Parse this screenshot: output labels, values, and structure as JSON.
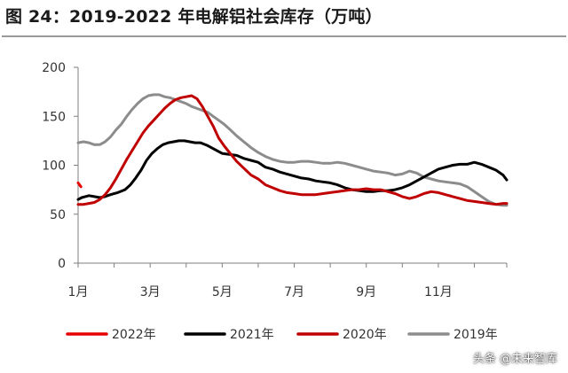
{
  "title": "图 24：2019-2022 年电解铝社会库存（万吨）",
  "watermark": "头条 @未来智库",
  "chart_data": {
    "type": "line",
    "title": "图 24：2019-2022 年电解铝社会库存（万吨）",
    "xlabel": "",
    "ylabel": "",
    "ylim": [
      0,
      200
    ],
    "yticks": [
      0,
      50,
      100,
      150,
      200
    ],
    "xlim": [
      1,
      12.9
    ],
    "xticks": [
      1,
      3,
      5,
      7,
      9,
      11
    ],
    "xtick_labels": [
      "1月",
      "3月",
      "5月",
      "7月",
      "9月",
      "11月"
    ],
    "grid": false,
    "legend_position": "bottom",
    "series": [
      {
        "name": "2022年",
        "color": "#e60000",
        "x": [
          1.0,
          1.08
        ],
        "y": [
          82,
          78
        ]
      },
      {
        "name": "2021年",
        "color": "#000000",
        "x": [
          1.0,
          1.1,
          1.2,
          1.3,
          1.45,
          1.6,
          1.75,
          1.9,
          2.1,
          2.3,
          2.45,
          2.6,
          2.75,
          2.9,
          3.05,
          3.2,
          3.35,
          3.5,
          3.65,
          3.8,
          3.95,
          4.1,
          4.25,
          4.4,
          4.6,
          4.8,
          5.0,
          5.2,
          5.4,
          5.6,
          5.8,
          6.0,
          6.2,
          6.4,
          6.6,
          6.8,
          7.0,
          7.2,
          7.4,
          7.6,
          7.8,
          8.0,
          8.2,
          8.4,
          8.6,
          8.8,
          9.0,
          9.2,
          9.4,
          9.6,
          9.8,
          10.0,
          10.2,
          10.4,
          10.6,
          10.8,
          11.0,
          11.2,
          11.4,
          11.6,
          11.8,
          12.0,
          12.2,
          12.4,
          12.6,
          12.8,
          12.9
        ],
        "y": [
          65,
          67,
          68,
          69,
          68,
          67,
          68,
          70,
          72,
          75,
          80,
          87,
          95,
          105,
          112,
          117,
          121,
          123,
          124,
          125,
          125,
          124,
          123,
          123,
          120,
          116,
          112,
          111,
          110,
          107,
          105,
          103,
          98,
          96,
          93,
          91,
          89,
          87,
          86,
          84,
          83,
          82,
          80,
          77,
          75,
          74,
          73,
          73,
          74,
          74,
          75,
          77,
          80,
          84,
          88,
          92,
          96,
          98,
          100,
          101,
          101,
          103,
          101,
          98,
          95,
          90,
          85
        ]
      },
      {
        "name": "2020年",
        "color": "#c00000",
        "x": [
          1.0,
          1.15,
          1.3,
          1.45,
          1.6,
          1.75,
          1.9,
          2.05,
          2.2,
          2.35,
          2.5,
          2.65,
          2.8,
          2.95,
          3.1,
          3.25,
          3.4,
          3.55,
          3.7,
          3.85,
          4.0,
          4.15,
          4.3,
          4.45,
          4.6,
          4.75,
          4.9,
          5.05,
          5.2,
          5.4,
          5.6,
          5.8,
          6.0,
          6.2,
          6.4,
          6.6,
          6.8,
          7.0,
          7.2,
          7.4,
          7.6,
          7.8,
          8.0,
          8.2,
          8.4,
          8.6,
          8.8,
          9.0,
          9.2,
          9.4,
          9.6,
          9.8,
          10.0,
          10.2,
          10.4,
          10.6,
          10.8,
          11.0,
          11.2,
          11.4,
          11.6,
          11.8,
          12.0,
          12.2,
          12.4,
          12.6,
          12.8,
          12.9
        ],
        "y": [
          60,
          60,
          61,
          62,
          65,
          70,
          77,
          86,
          96,
          106,
          115,
          124,
          133,
          140,
          146,
          152,
          158,
          163,
          167,
          169,
          170,
          171,
          168,
          160,
          150,
          140,
          128,
          120,
          113,
          104,
          97,
          90,
          86,
          80,
          77,
          74,
          72,
          71,
          70,
          70,
          70,
          71,
          72,
          73,
          74,
          75,
          75,
          76,
          75,
          75,
          73,
          71,
          68,
          66,
          68,
          71,
          73,
          72,
          70,
          68,
          66,
          64,
          63,
          62,
          61,
          60,
          61,
          61
        ]
      },
      {
        "name": "2019年",
        "color": "#8c8c8c",
        "x": [
          1.0,
          1.15,
          1.3,
          1.45,
          1.6,
          1.75,
          1.9,
          2.05,
          2.2,
          2.35,
          2.5,
          2.65,
          2.8,
          2.95,
          3.1,
          3.25,
          3.4,
          3.55,
          3.7,
          3.85,
          4.0,
          4.15,
          4.3,
          4.45,
          4.6,
          4.75,
          4.9,
          5.05,
          5.2,
          5.4,
          5.6,
          5.8,
          6.0,
          6.2,
          6.4,
          6.6,
          6.8,
          7.0,
          7.2,
          7.4,
          7.6,
          7.8,
          8.0,
          8.2,
          8.4,
          8.6,
          8.8,
          9.0,
          9.2,
          9.4,
          9.6,
          9.8,
          10.0,
          10.2,
          10.4,
          10.6,
          10.8,
          11.0,
          11.2,
          11.4,
          11.6,
          11.8,
          12.0,
          12.2,
          12.4,
          12.6,
          12.8,
          12.9
        ],
        "y": [
          123,
          124,
          123,
          121,
          121,
          124,
          129,
          136,
          142,
          150,
          157,
          163,
          168,
          171,
          172,
          172,
          170,
          169,
          167,
          165,
          163,
          160,
          158,
          156,
          154,
          150,
          146,
          142,
          137,
          130,
          124,
          118,
          113,
          109,
          106,
          104,
          103,
          103,
          104,
          104,
          103,
          102,
          102,
          103,
          102,
          100,
          98,
          96,
          94,
          93,
          92,
          90,
          91,
          94,
          92,
          88,
          86,
          84,
          83,
          82,
          81,
          78,
          73,
          68,
          63,
          60,
          59,
          59
        ]
      }
    ]
  }
}
